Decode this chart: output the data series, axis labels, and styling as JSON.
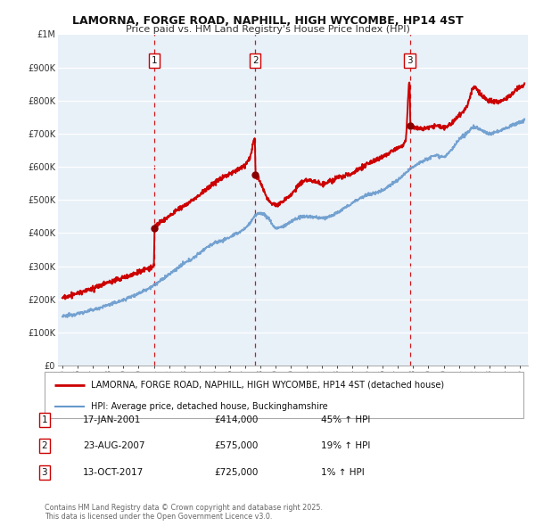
{
  "title": "LAMORNA, FORGE ROAD, NAPHILL, HIGH WYCOMBE, HP14 4ST",
  "subtitle": "Price paid vs. HM Land Registry's House Price Index (HPI)",
  "sale_color": "#cc0000",
  "hpi_color": "#6699cc",
  "background_color": "#e8f0f8",
  "plot_background": "#e8f0f8",
  "ylim": [
    0,
    1000000
  ],
  "yticks": [
    0,
    100000,
    200000,
    300000,
    400000,
    500000,
    600000,
    700000,
    800000,
    900000,
    1000000
  ],
  "ytick_labels": [
    "£0",
    "£100K",
    "£200K",
    "£300K",
    "£400K",
    "£500K",
    "£600K",
    "£700K",
    "£800K",
    "£900K",
    "£1M"
  ],
  "xlim_start": 1994.7,
  "xlim_end": 2025.5,
  "xticks": [
    1995,
    1996,
    1997,
    1998,
    1999,
    2000,
    2001,
    2002,
    2003,
    2004,
    2005,
    2006,
    2007,
    2008,
    2009,
    2010,
    2011,
    2012,
    2013,
    2014,
    2015,
    2016,
    2017,
    2018,
    2019,
    2020,
    2021,
    2022,
    2023,
    2024,
    2025
  ],
  "sale_dates": [
    2001.04,
    2007.64,
    2017.79
  ],
  "sale_prices": [
    414000,
    575000,
    725000
  ],
  "sale_labels": [
    "1",
    "2",
    "3"
  ],
  "legend_sale_label": "LAMORNA, FORGE ROAD, NAPHILL, HIGH WYCOMBE, HP14 4ST (detached house)",
  "legend_hpi_label": "HPI: Average price, detached house, Buckinghamshire",
  "table_rows": [
    {
      "num": "1",
      "date": "17-JAN-2001",
      "price": "£414,000",
      "pct": "45% ↑ HPI"
    },
    {
      "num": "2",
      "date": "23-AUG-2007",
      "price": "£575,000",
      "pct": "19% ↑ HPI"
    },
    {
      "num": "3",
      "date": "13-OCT-2017",
      "price": "£725,000",
      "pct": "1% ↑ HPI"
    }
  ],
  "footer": "Contains HM Land Registry data © Crown copyright and database right 2025.\nThis data is licensed under the Open Government Licence v3.0."
}
